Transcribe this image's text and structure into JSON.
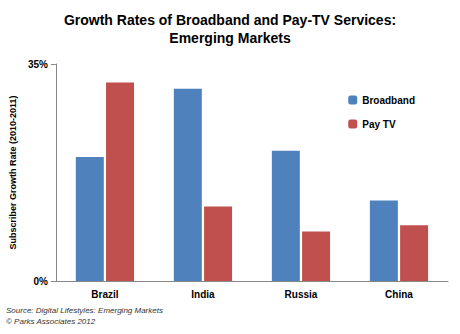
{
  "chart_data": {
    "type": "bar",
    "title": "Growth Rates of Broadband and Pay-TV Services:\nEmerging Markets",
    "y_label": "Subscriber Growth Rate (2010-2011)",
    "categories": [
      "Brazil",
      "India",
      "Russia",
      "China"
    ],
    "series": [
      {
        "name": "Broadband",
        "color": "#4f81bd",
        "values": [
          20,
          31,
          21,
          13
        ]
      },
      {
        "name": "Pay TV",
        "color": "#c0504d",
        "values": [
          32,
          12,
          8,
          9
        ]
      }
    ],
    "ylim": [
      0,
      35
    ],
    "yticks": [
      {
        "value": 0,
        "label": "0%"
      },
      {
        "value": 35,
        "label": "35%"
      }
    ],
    "grid": false,
    "legend": "upper right",
    "annotations": [
      "Source: Digital Lifestyles: Emerging Markets",
      "© Parks Associates 2012"
    ]
  }
}
